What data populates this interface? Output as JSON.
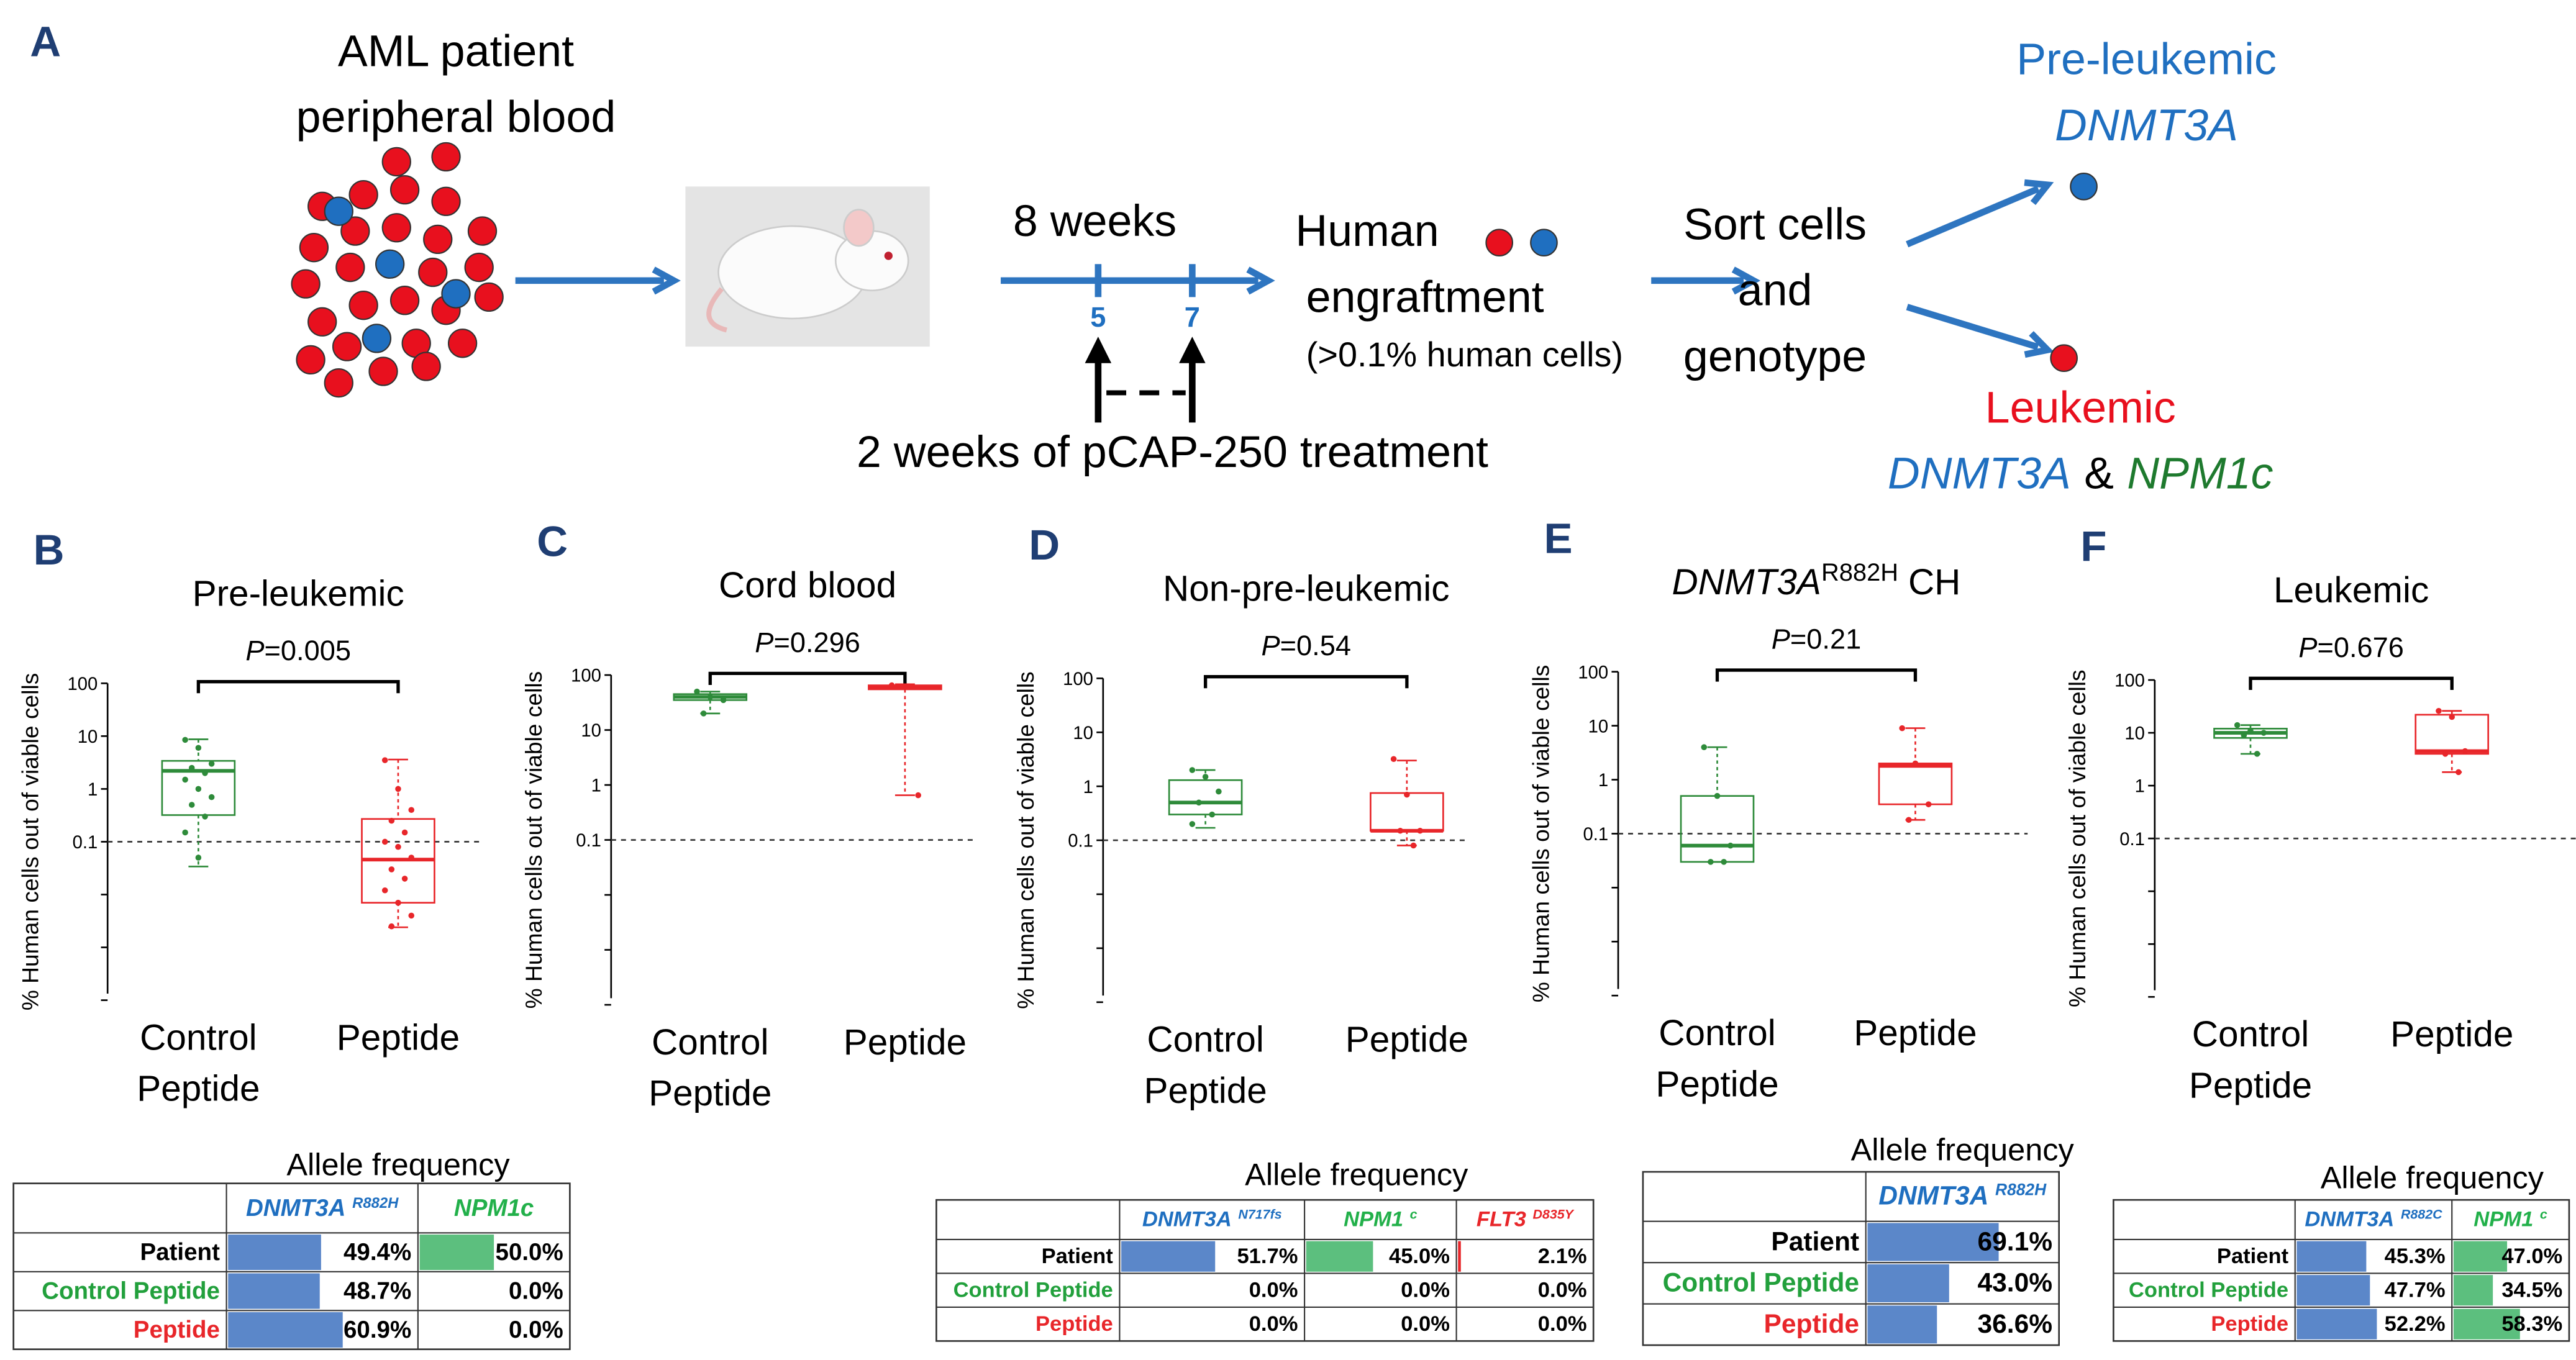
{
  "schematic": {
    "label": "A",
    "source": [
      "AML patient",
      "peripheral blood"
    ],
    "duration": "8 weeks",
    "timepoints": [
      "5",
      "7"
    ],
    "engraftment": [
      "Human",
      "engraftment",
      "(>0.1% human cells)"
    ],
    "treatment": "2 weeks of pCAP-250 treatment",
    "sort": [
      "Sort cells",
      "and",
      "genotype"
    ],
    "pre_leukemic": {
      "label": "Pre-leukemic",
      "gene": "DNMT3A"
    },
    "leukemic": {
      "label": "Leukemic",
      "gene1": "DNMT3A",
      "joiner": "&",
      "gene2": "NPM1c"
    }
  },
  "chart_data": [
    {
      "panel": "B",
      "type": "box",
      "title": "Pre-leukemic",
      "p_label": "P=0.005",
      "ylabel": "% Human cells out of viable cells",
      "log_scale": true,
      "ylim": [
        0.0001,
        100
      ],
      "yticks": [
        0.1,
        1,
        10,
        100
      ],
      "reference_line": 0.1,
      "categories": [
        "Control Peptide",
        "Peptide"
      ],
      "series": [
        {
          "color": "#2e8b3a",
          "values": [
            8.5,
            6,
            3,
            2.5,
            2,
            1.5,
            1,
            0.7,
            0.5,
            0.3,
            0.15,
            0.05
          ],
          "box": {
            "whislo": 0.034,
            "q1": 0.32,
            "med": 2.2,
            "q3": 3.4,
            "whishi": 8.7
          }
        },
        {
          "color": "#e8262a",
          "values": [
            3.5,
            1,
            0.4,
            0.25,
            0.15,
            0.1,
            0.08,
            0.05,
            0.03,
            0.02,
            0.012,
            0.007,
            0.004,
            0.0025
          ],
          "box": {
            "whislo": 0.0024,
            "q1": 0.007,
            "med": 0.046,
            "q3": 0.27,
            "whishi": 3.6
          }
        }
      ]
    },
    {
      "panel": "C",
      "type": "box",
      "title": "Cord blood",
      "p_label": "P=0.296",
      "ylabel": "% Human cells out of viable cells",
      "log_scale": true,
      "ylim": [
        0.0001,
        100
      ],
      "yticks": [
        0.1,
        1,
        10,
        100
      ],
      "reference_line": 0.1,
      "categories": [
        "Control Peptide",
        "Peptide"
      ],
      "series": [
        {
          "color": "#2e8b3a",
          "values": [
            50,
            40,
            35,
            20
          ],
          "box": {
            "whislo": 20,
            "q1": 35,
            "med": 40,
            "q3": 45,
            "whishi": 50
          }
        },
        {
          "color": "#e8262a",
          "values": [
            65,
            60,
            0.65
          ],
          "box": {
            "whislo": 0.65,
            "q1": 55,
            "med": 60,
            "q3": 65,
            "whishi": 68
          }
        }
      ]
    },
    {
      "panel": "D",
      "type": "box",
      "title": "Non-pre-leukemic",
      "p_label": "P=0.54",
      "ylabel": "% Human cells out of viable cells",
      "log_scale": true,
      "ylim": [
        0.0001,
        100
      ],
      "yticks": [
        0.1,
        1,
        10,
        100
      ],
      "reference_line": 0.1,
      "categories": [
        "Control Peptide",
        "Peptide"
      ],
      "series": [
        {
          "color": "#2e8b3a",
          "values": [
            2,
            1.5,
            0.8,
            0.5,
            0.3,
            0.2
          ],
          "box": {
            "whislo": 0.17,
            "q1": 0.3,
            "med": 0.5,
            "q3": 1.3,
            "whishi": 2
          }
        },
        {
          "color": "#e8262a",
          "values": [
            3.2,
            0.7,
            0.15,
            0.15,
            0.08
          ],
          "box": {
            "whislo": 0.08,
            "q1": 0.15,
            "med": 0.15,
            "q3": 0.75,
            "whishi": 3
          }
        }
      ]
    },
    {
      "panel": "E",
      "type": "box",
      "title": "DNMT3A",
      "title_sup": "R882H",
      "title_suffix": "CH",
      "p_label": "P=0.21",
      "ylabel": "% Human cells out of viable cells",
      "log_scale": true,
      "ylim": [
        0.0001,
        100
      ],
      "yticks": [
        0.1,
        1,
        10,
        100
      ],
      "reference_line": 0.1,
      "categories": [
        "Control Peptide",
        "Peptide"
      ],
      "series": [
        {
          "color": "#2e8b3a",
          "values": [
            4,
            0.5,
            0.06,
            0.03,
            0.03
          ],
          "box": {
            "whislo": 0.03,
            "q1": 0.03,
            "med": 0.06,
            "q3": 0.5,
            "whishi": 4
          }
        },
        {
          "color": "#e8262a",
          "values": [
            9,
            2,
            0.35,
            0.18
          ],
          "box": {
            "whislo": 0.18,
            "q1": 0.35,
            "med": 1.8,
            "q3": 2,
            "whishi": 9
          }
        }
      ]
    },
    {
      "panel": "F",
      "type": "box",
      "title": "Leukemic",
      "p_label": "P=0.676",
      "ylabel": "% Human cells out of viable cells",
      "log_scale": true,
      "ylim": [
        0.0001,
        100
      ],
      "yticks": [
        0.1,
        1,
        10,
        100
      ],
      "reference_line": 0.1,
      "categories": [
        "Control Peptide",
        "Peptide"
      ],
      "series": [
        {
          "color": "#2e8b3a",
          "values": [
            14,
            11,
            10,
            9,
            4
          ],
          "box": {
            "whislo": 4,
            "q1": 8,
            "med": 10,
            "q3": 12,
            "whishi": 14
          }
        },
        {
          "color": "#e8262a",
          "values": [
            26,
            20,
            4.5,
            4,
            1.8
          ],
          "box": {
            "whislo": 1.8,
            "q1": 4,
            "med": 4.5,
            "q3": 22,
            "whishi": 26
          }
        }
      ]
    }
  ],
  "tables": [
    {
      "panel": "B",
      "title": "Allele frequency",
      "columns": [
        {
          "name": "DNMT3A",
          "sup": "R882H",
          "color": "#1f6fc0",
          "bar_color": "#5b87c9"
        },
        {
          "name": "NPM1c",
          "color": "#22b04a",
          "bar_color": "#5cbf7e"
        }
      ],
      "rows": [
        {
          "label": "Patient",
          "color": "#000000",
          "values": [
            49.4,
            50.0
          ],
          "value_labels": [
            "49.4%",
            "50.0%"
          ]
        },
        {
          "label": "Control Peptide",
          "color": "#22a03c",
          "values": [
            48.7,
            0.0
          ],
          "value_labels": [
            "48.7%",
            "0.0%"
          ]
        },
        {
          "label": "Peptide",
          "color": "#e8262a",
          "values": [
            60.9,
            0.0
          ],
          "value_labels": [
            "60.9%",
            "0.0%"
          ]
        }
      ]
    },
    {
      "panel": "D",
      "title": "Allele frequency",
      "columns": [
        {
          "name": "DNMT3A",
          "sup": "N717fs",
          "color": "#1f6fc0",
          "bar_color": "#5b87c9"
        },
        {
          "name": "NPM1",
          "sup": "c",
          "color": "#22b04a",
          "bar_color": "#5cbf7e"
        },
        {
          "name": "FLT3",
          "sup": "D835Y",
          "color": "#e8262a",
          "bar_color": "#e8262a"
        }
      ],
      "rows": [
        {
          "label": "Patient",
          "color": "#000000",
          "values": [
            51.7,
            45.0,
            2.1
          ],
          "value_labels": [
            "51.7%",
            "45.0%",
            "2.1%"
          ]
        },
        {
          "label": "Control Peptide",
          "color": "#22a03c",
          "values": [
            0.0,
            0.0,
            0.0
          ],
          "value_labels": [
            "0.0%",
            "0.0%",
            "0.0%"
          ]
        },
        {
          "label": "Peptide",
          "color": "#e8262a",
          "values": [
            0.0,
            0.0,
            0.0
          ],
          "value_labels": [
            "0.0%",
            "0.0%",
            "0.0%"
          ]
        }
      ]
    },
    {
      "panel": "E",
      "title": "Allele frequency",
      "columns": [
        {
          "name": "DNMT3A",
          "sup": "R882H",
          "color": "#1f6fc0",
          "bar_color": "#5b87c9"
        }
      ],
      "rows": [
        {
          "label": "Patient",
          "color": "#000000",
          "values": [
            69.1
          ],
          "value_labels": [
            "69.1%"
          ]
        },
        {
          "label": "Control Peptide",
          "color": "#22a03c",
          "values": [
            43.0
          ],
          "value_labels": [
            "43.0%"
          ]
        },
        {
          "label": "Peptide",
          "color": "#e8262a",
          "values": [
            36.6
          ],
          "value_labels": [
            "36.6%"
          ]
        }
      ]
    },
    {
      "panel": "F",
      "title": "Allele frequency",
      "columns": [
        {
          "name": "DNMT3A",
          "sup": "R882C",
          "color": "#1f6fc0",
          "bar_color": "#5b87c9"
        },
        {
          "name": "NPM1",
          "sup": "c",
          "color": "#22b04a",
          "bar_color": "#5cbf7e"
        }
      ],
      "rows": [
        {
          "label": "Patient",
          "color": "#000000",
          "values": [
            45.3,
            47.0
          ],
          "value_labels": [
            "45.3%",
            "47.0%"
          ]
        },
        {
          "label": "Control Peptide",
          "color": "#22a03c",
          "values": [
            47.7,
            34.5
          ],
          "value_labels": [
            "47.7%",
            "34.5%"
          ]
        },
        {
          "label": "Peptide",
          "color": "#e8262a",
          "values": [
            52.2,
            58.3
          ],
          "value_labels": [
            "52.2%",
            "58.3%"
          ]
        }
      ]
    }
  ]
}
